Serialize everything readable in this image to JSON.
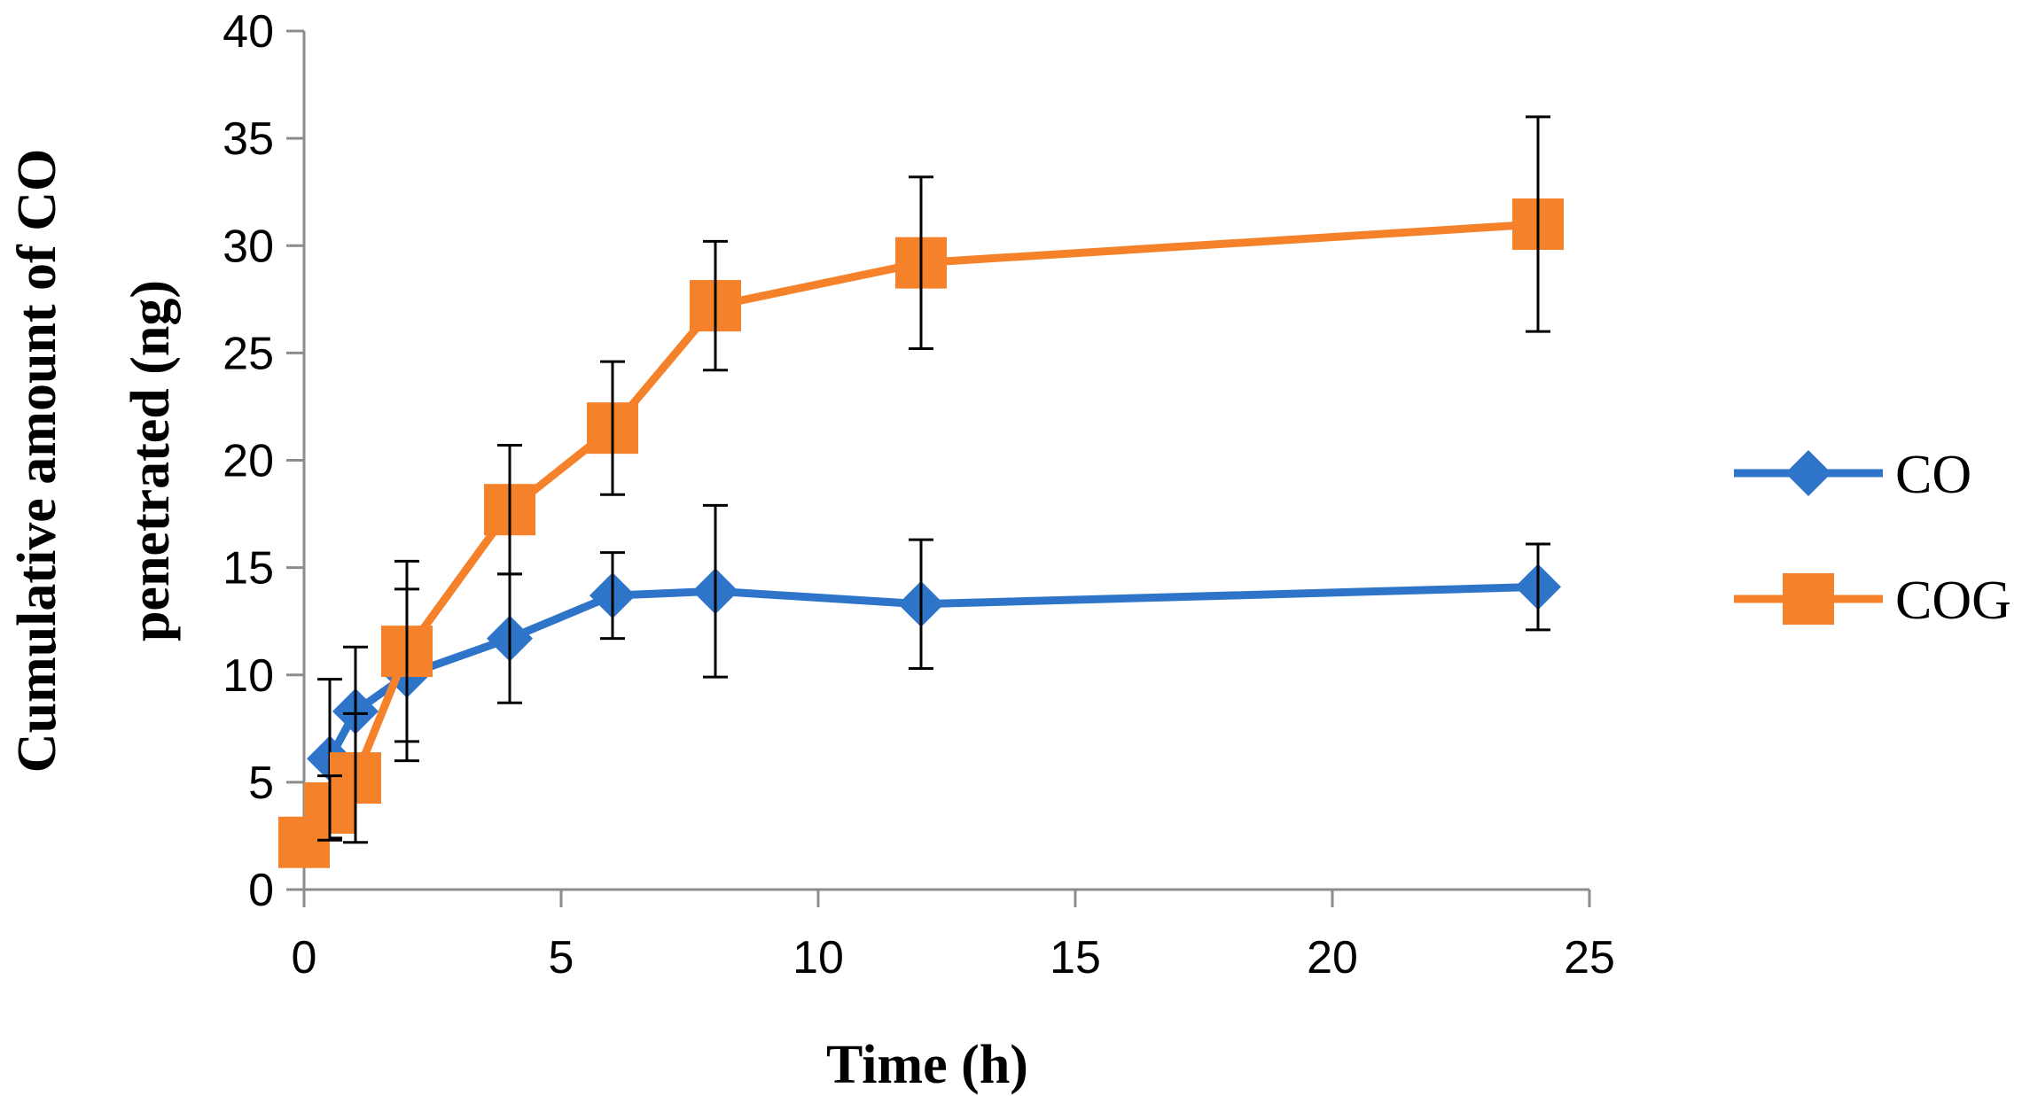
{
  "chart_data": {
    "type": "line",
    "title": "",
    "xlabel": "Time (h)",
    "ylabel_lines": [
      "Cumulative amount of CO",
      "penetrated (ng)"
    ],
    "xlim": [
      0,
      25
    ],
    "ylim": [
      0,
      40
    ],
    "x_ticks": [
      0,
      5,
      10,
      15,
      20,
      25
    ],
    "y_ticks": [
      0,
      5,
      10,
      15,
      20,
      25,
      30,
      35,
      40
    ],
    "grid": false,
    "legend_position": "right",
    "colors": {
      "CO": "#2e75c9",
      "COG": "#f5822a",
      "error": "#000000",
      "axis": "#8c8c8c"
    },
    "series": [
      {
        "name": "CO",
        "marker": "diamond",
        "x": [
          0.5,
          1,
          2,
          4,
          6,
          8,
          12,
          24
        ],
        "y": [
          6.1,
          8.3,
          10.0,
          11.7,
          13.7,
          13.9,
          13.3,
          14.1
        ],
        "err": [
          3.7,
          3.0,
          4.0,
          3.0,
          2.0,
          4.0,
          3.0,
          2.0
        ]
      },
      {
        "name": "COG",
        "marker": "square",
        "x": [
          0,
          0.5,
          1,
          2,
          4,
          6,
          8,
          12,
          24
        ],
        "y": [
          2.2,
          3.8,
          5.2,
          11.1,
          17.7,
          21.5,
          27.2,
          29.2,
          31.0
        ],
        "err": [
          0,
          1.5,
          3.0,
          4.2,
          3.0,
          3.1,
          3.0,
          4.0,
          5.0
        ]
      }
    ]
  }
}
